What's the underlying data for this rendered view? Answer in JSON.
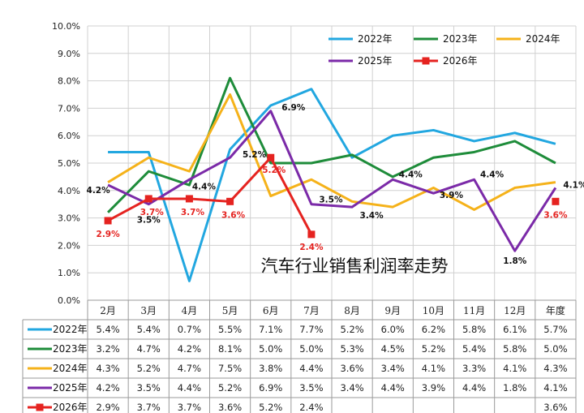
{
  "chart_data": {
    "type": "line",
    "title": "汽车行业销售利润率走势",
    "categories": [
      "2月",
      "3月",
      "4月",
      "5月",
      "6月",
      "7月",
      "8月",
      "9月",
      "10月",
      "11月",
      "12月",
      "年度"
    ],
    "y_ticks": [
      "0.0%",
      "1.0%",
      "2.0%",
      "3.0%",
      "4.0%",
      "5.0%",
      "6.0%",
      "7.0%",
      "8.0%",
      "9.0%",
      "10.0%"
    ],
    "ylim": [
      0,
      10
    ],
    "grid": true,
    "legend_position": "top-right",
    "series": [
      {
        "name": "2022年",
        "color": "#22a7e0",
        "values": [
          5.4,
          5.4,
          0.7,
          5.5,
          7.1,
          7.7,
          5.2,
          6.0,
          6.2,
          5.8,
          6.1,
          5.7
        ],
        "table": [
          "5.4%",
          "5.4%",
          "0.7%",
          "5.5%",
          "7.1%",
          "7.7%",
          "5.2%",
          "6.0%",
          "6.2%",
          "5.8%",
          "6.1%",
          "5.7%"
        ]
      },
      {
        "name": "2023年",
        "color": "#1e8c3a",
        "values": [
          3.2,
          4.7,
          4.2,
          8.1,
          5.0,
          5.0,
          5.3,
          4.5,
          5.2,
          5.4,
          5.8,
          5.0
        ],
        "table": [
          "3.2%",
          "4.7%",
          "4.2%",
          "8.1%",
          "5.0%",
          "5.0%",
          "5.3%",
          "4.5%",
          "5.2%",
          "5.4%",
          "5.8%",
          "5.0%"
        ]
      },
      {
        "name": "2024年",
        "color": "#f5b21a",
        "values": [
          4.3,
          5.2,
          4.7,
          7.5,
          3.8,
          4.4,
          3.6,
          3.4,
          4.1,
          3.3,
          4.1,
          4.3
        ],
        "table": [
          "4.3%",
          "5.2%",
          "4.7%",
          "7.5%",
          "3.8%",
          "4.4%",
          "3.6%",
          "3.4%",
          "4.1%",
          "3.3%",
          "4.1%",
          "4.3%"
        ]
      },
      {
        "name": "2025年",
        "color": "#7b2aa8",
        "values": [
          4.2,
          3.5,
          4.4,
          5.2,
          6.9,
          3.5,
          3.4,
          4.4,
          3.9,
          4.4,
          1.8,
          4.1
        ],
        "table": [
          "4.2%",
          "3.5%",
          "4.4%",
          "5.2%",
          "6.9%",
          "3.5%",
          "3.4%",
          "4.4%",
          "3.9%",
          "4.4%",
          "1.8%",
          "4.1%"
        ]
      },
      {
        "name": "2026年",
        "color": "#e52320",
        "marker": "square",
        "values": [
          2.9,
          3.7,
          3.7,
          3.6,
          5.2,
          2.4,
          null,
          null,
          null,
          null,
          null,
          3.6
        ],
        "table": [
          "2.9%",
          "3.7%",
          "3.7%",
          "3.6%",
          "5.2%",
          "2.4%",
          "",
          "",
          "",
          "",
          "",
          "3.6%"
        ]
      }
    ],
    "data_labels": [
      {
        "series": 3,
        "index": 0,
        "text": "4.2%"
      },
      {
        "series": 3,
        "index": 1,
        "text": "3.5%"
      },
      {
        "series": 3,
        "index": 2,
        "text": "4.4%"
      },
      {
        "series": 3,
        "index": 3,
        "text": "5.2%"
      },
      {
        "series": 3,
        "index": 4,
        "text": "6.9%"
      },
      {
        "series": 3,
        "index": 5,
        "text": "3.5%"
      },
      {
        "series": 3,
        "index": 6,
        "text": "3.4%"
      },
      {
        "series": 3,
        "index": 7,
        "text": "4.4%"
      },
      {
        "series": 3,
        "index": 8,
        "text": "3.9%"
      },
      {
        "series": 3,
        "index": 9,
        "text": "4.4%"
      },
      {
        "series": 3,
        "index": 10,
        "text": "1.8%"
      },
      {
        "series": 3,
        "index": 11,
        "text": "4.1%"
      },
      {
        "series": 4,
        "index": 0,
        "text": "2.9%"
      },
      {
        "series": 4,
        "index": 1,
        "text": "3.7%"
      },
      {
        "series": 4,
        "index": 2,
        "text": "3.7%"
      },
      {
        "series": 4,
        "index": 3,
        "text": "3.6%"
      },
      {
        "series": 4,
        "index": 4,
        "text": "5.2%"
      },
      {
        "series": 4,
        "index": 5,
        "text": "2.4%"
      },
      {
        "series": 4,
        "index": 11,
        "text": "3.6%"
      }
    ]
  }
}
